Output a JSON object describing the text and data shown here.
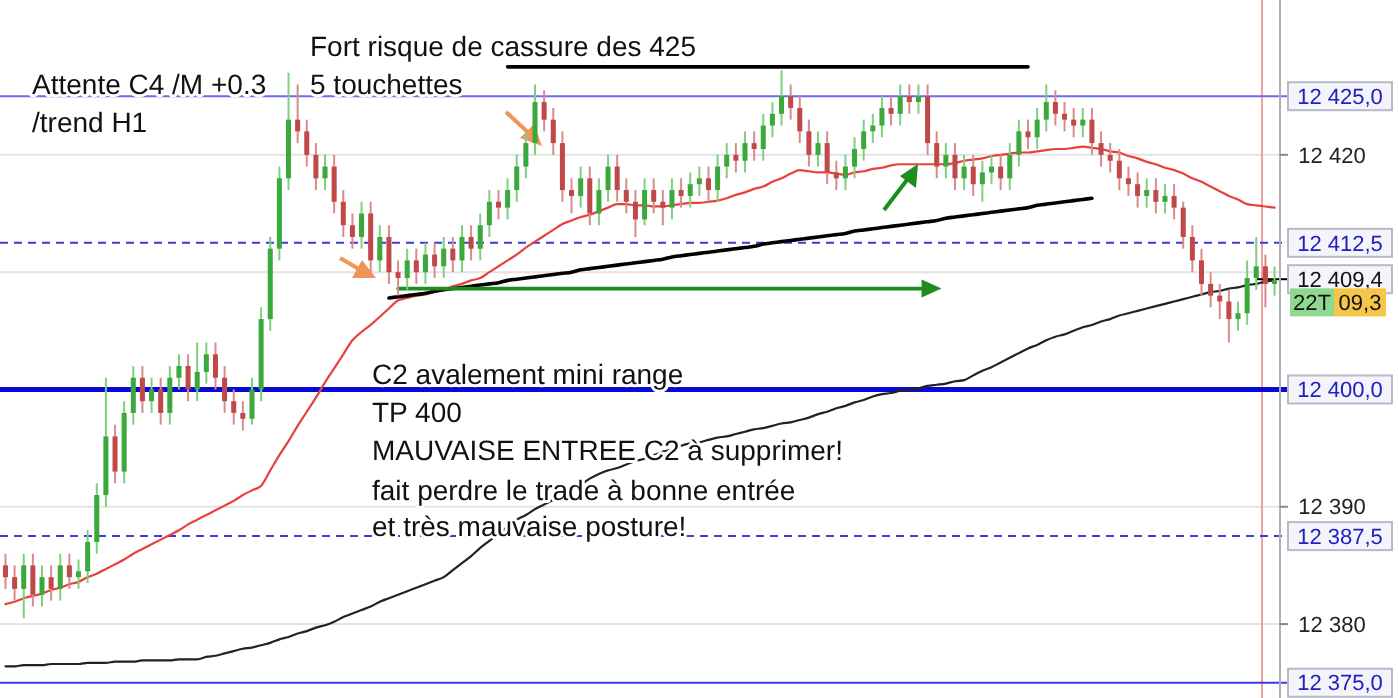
{
  "chart_data": {
    "type": "candlestick",
    "categories": [
      null,
      null,
      null,
      null,
      null,
      null,
      null,
      null,
      null,
      null,
      null,
      null,
      null,
      null,
      null,
      null,
      null,
      null,
      null,
      null,
      null,
      null,
      null,
      null,
      null,
      null,
      null,
      null,
      null,
      null,
      null,
      null,
      null,
      null,
      null,
      null,
      null,
      null,
      null,
      null,
      null,
      null,
      null,
      null,
      null,
      null,
      null,
      null,
      null,
      null,
      null,
      null,
      null,
      null,
      null,
      null,
      null,
      null,
      null,
      null,
      null,
      null,
      null,
      null,
      null,
      null,
      null,
      null,
      null,
      null,
      null,
      null,
      null,
      null,
      null,
      null,
      null,
      null,
      null,
      null,
      null,
      null,
      null,
      null,
      null,
      null,
      null,
      null,
      null,
      null,
      null,
      null,
      null,
      null,
      null,
      null,
      null,
      null,
      null,
      null,
      null,
      null,
      null,
      null,
      null,
      null,
      null,
      null,
      null,
      null,
      null,
      null,
      null,
      null,
      null,
      null,
      null,
      null,
      null,
      null,
      null,
      null,
      null,
      null,
      null,
      null,
      null,
      null,
      null,
      null,
      null,
      null,
      null,
      null,
      null,
      null,
      null,
      null,
      null,
      null
    ],
    "ohlc": [
      [
        12385,
        12386,
        12383,
        12384
      ],
      [
        12384,
        12385,
        12382,
        12383
      ],
      [
        12383,
        12386,
        12380.5,
        12385
      ],
      [
        12385,
        12386,
        12381.5,
        12382.5
      ],
      [
        12382.5,
        12385,
        12381.5,
        12384
      ],
      [
        12384,
        12385,
        12382,
        12383
      ],
      [
        12383,
        12386,
        12382,
        12385
      ],
      [
        12385,
        12386,
        12383,
        12384
      ],
      [
        12384,
        12385.5,
        12383,
        12384.5
      ],
      [
        12384.5,
        12388,
        12383.5,
        12387
      ],
      [
        12387,
        12392,
        12386,
        12391
      ],
      [
        12391,
        12401,
        12390,
        12396
      ],
      [
        12396,
        12397,
        12392,
        12393
      ],
      [
        12393,
        12399,
        12392,
        12398
      ],
      [
        12398,
        12402,
        12397,
        12401
      ],
      [
        12401,
        12402,
        12398,
        12399
      ],
      [
        12399,
        12401,
        12398,
        12400
      ],
      [
        12400,
        12401,
        12397,
        12398
      ],
      [
        12398,
        12402,
        12397,
        12401
      ],
      [
        12401,
        12403,
        12400,
        12402
      ],
      [
        12402,
        12403,
        12399,
        12400
      ],
      [
        12400,
        12404,
        12399,
        12401.5
      ],
      [
        12401.5,
        12404,
        12400.5,
        12403
      ],
      [
        12403,
        12404,
        12400,
        12401
      ],
      [
        12401,
        12402,
        12398,
        12399
      ],
      [
        12399,
        12400,
        12397,
        12398
      ],
      [
        12398,
        12399,
        12396.5,
        12397.5
      ],
      [
        12397.5,
        12401,
        12397,
        12400
      ],
      [
        12400,
        12407,
        12399,
        12406
      ],
      [
        12406,
        12413,
        12405,
        12412
      ],
      [
        12412,
        12419,
        12411,
        12418
      ],
      [
        12418,
        12427,
        12417,
        12423
      ],
      [
        12423,
        12426,
        12421,
        12422
      ],
      [
        12422,
        12423,
        12419,
        12420
      ],
      [
        12420,
        12421,
        12417,
        12418
      ],
      [
        12418,
        12420,
        12417,
        12419
      ],
      [
        12419,
        12420,
        12415,
        12416
      ],
      [
        12416,
        12417,
        12413,
        12414
      ],
      [
        12414,
        12415,
        12412,
        12413
      ],
      [
        12413,
        12416,
        12412,
        12415
      ],
      [
        12415,
        12416,
        12410,
        12411
      ],
      [
        12411,
        12414,
        12410,
        12413
      ],
      [
        12413,
        12414,
        12409,
        12410
      ],
      [
        12410,
        12411,
        12408,
        12409.5
      ],
      [
        12409.5,
        12412,
        12408.5,
        12411
      ],
      [
        12411,
        12412,
        12409,
        12410
      ],
      [
        12410,
        12412.5,
        12409,
        12411.5
      ],
      [
        12411.5,
        12412.5,
        12409.5,
        12410.5
      ],
      [
        12410.5,
        12413,
        12409.5,
        12412
      ],
      [
        12412,
        12413,
        12410,
        12411
      ],
      [
        12411,
        12414,
        12410,
        12413
      ],
      [
        12413,
        12414,
        12411,
        12412
      ],
      [
        12412,
        12415,
        12411,
        12414
      ],
      [
        12414,
        12417,
        12413,
        12416
      ],
      [
        12416,
        12417,
        12414.5,
        12415.5
      ],
      [
        12415.5,
        12418,
        12414.5,
        12417
      ],
      [
        12417,
        12420,
        12416,
        12419
      ],
      [
        12419,
        12422,
        12418,
        12421
      ],
      [
        12421,
        12426,
        12420,
        12424.5
      ],
      [
        12424.5,
        12425.5,
        12422,
        12423
      ],
      [
        12423,
        12424,
        12420,
        12421
      ],
      [
        12421,
        12422,
        12416,
        12417
      ],
      [
        12417,
        12418,
        12415,
        12416.5
      ],
      [
        12416.5,
        12419,
        12415.5,
        12418
      ],
      [
        12418,
        12419,
        12414,
        12415
      ],
      [
        12415,
        12418,
        12414,
        12417
      ],
      [
        12417,
        12420,
        12416,
        12419
      ],
      [
        12419,
        12420,
        12416,
        12417
      ],
      [
        12417,
        12418,
        12415,
        12416
      ],
      [
        12416,
        12417,
        12413,
        12414.5
      ],
      [
        12414.5,
        12418,
        12414,
        12417
      ],
      [
        12417,
        12418,
        12415,
        12416
      ],
      [
        12416,
        12417,
        12414,
        12415.5
      ],
      [
        12415.5,
        12418,
        12414.5,
        12417
      ],
      [
        12417,
        12418,
        12415.5,
        12416.5
      ],
      [
        12416.5,
        12418.5,
        12415.5,
        12417.5
      ],
      [
        12417.5,
        12419,
        12416.5,
        12418
      ],
      [
        12418,
        12419,
        12416,
        12417
      ],
      [
        12417,
        12420,
        12416,
        12419
      ],
      [
        12419,
        12421,
        12418,
        12420
      ],
      [
        12420,
        12421,
        12418.5,
        12419.5
      ],
      [
        12419.5,
        12422,
        12418.5,
        12421
      ],
      [
        12421,
        12422,
        12419.5,
        12420.5
      ],
      [
        12420.5,
        12423.5,
        12419.5,
        12422.5
      ],
      [
        12422.5,
        12424.5,
        12421.5,
        12423.5
      ],
      [
        12423.5,
        12427.2,
        12422.5,
        12425
      ],
      [
        12425,
        12426,
        12423,
        12424
      ],
      [
        12424,
        12425,
        12421,
        12422
      ],
      [
        12422,
        12423,
        12419,
        12420
      ],
      [
        12420,
        12422,
        12419,
        12421
      ],
      [
        12421,
        12422,
        12417.5,
        12418.5
      ],
      [
        12418.5,
        12419.5,
        12417,
        12418
      ],
      [
        12418,
        12420,
        12417,
        12419
      ],
      [
        12419,
        12421.5,
        12418,
        12420.5
      ],
      [
        12420.5,
        12423,
        12419.5,
        12422
      ],
      [
        12422,
        12423.5,
        12421,
        12422.5
      ],
      [
        12422.5,
        12425,
        12421.5,
        12424
      ],
      [
        12424,
        12425,
        12422.5,
        12423.5
      ],
      [
        12423.5,
        12426,
        12422.5,
        12425
      ],
      [
        12425,
        12426,
        12423.5,
        12424.5
      ],
      [
        12424.5,
        12426,
        12423.5,
        12425
      ],
      [
        12425,
        12426,
        12420,
        12421
      ],
      [
        12421,
        12422,
        12418,
        12419
      ],
      [
        12419,
        12421,
        12418,
        12420
      ],
      [
        12420,
        12421,
        12417,
        12418
      ],
      [
        12418,
        12420,
        12417,
        12419
      ],
      [
        12419,
        12420,
        12416.5,
        12417.5
      ],
      [
        12417.5,
        12419.5,
        12416,
        12418.5
      ],
      [
        12418.5,
        12420,
        12417.5,
        12419
      ],
      [
        12419,
        12420,
        12417,
        12418
      ],
      [
        12418,
        12421,
        12417,
        12420
      ],
      [
        12420,
        12423,
        12419,
        12422
      ],
      [
        12422,
        12423,
        12420.5,
        12421.5
      ],
      [
        12421.5,
        12424,
        12420.5,
        12423
      ],
      [
        12423,
        12426,
        12422,
        12424.5
      ],
      [
        12424.5,
        12425.5,
        12422.5,
        12423.5
      ],
      [
        12423.5,
        12424.5,
        12422,
        12423
      ],
      [
        12423,
        12424,
        12421.5,
        12422.5
      ],
      [
        12422.5,
        12424,
        12421.5,
        12423
      ],
      [
        12423,
        12424,
        12420,
        12421
      ],
      [
        12421,
        12422,
        12419,
        12420
      ],
      [
        12420,
        12421,
        12418.5,
        12419.5
      ],
      [
        12419.5,
        12420.5,
        12417,
        12418
      ],
      [
        12418,
        12419,
        12416.5,
        12417.5
      ],
      [
        12417.5,
        12418.5,
        12415.5,
        12416.5
      ],
      [
        12416.5,
        12418,
        12415.5,
        12417
      ],
      [
        12417,
        12418,
        12415,
        12416
      ],
      [
        12416,
        12417.5,
        12415,
        12416.5
      ],
      [
        12416.5,
        12417.5,
        12414.5,
        12415.5
      ],
      [
        12415.5,
        12416,
        12412,
        12413
      ],
      [
        12413,
        12414,
        12410,
        12411
      ],
      [
        12411,
        12412,
        12408,
        12409
      ],
      [
        12409,
        12410,
        12407,
        12408
      ],
      [
        12408,
        12409,
        12406,
        12407.5
      ],
      [
        12407.5,
        12408.5,
        12404,
        12406
      ],
      [
        12406,
        12407.5,
        12405,
        12406.5
      ],
      [
        12406.5,
        12411,
        12405.5,
        12409.5
      ],
      [
        12409.5,
        12413,
        12408.5,
        12410.5
      ],
      [
        12410.5,
        12411.5,
        12407,
        12409
      ],
      [
        12409,
        12410.5,
        12408,
        12409.3
      ]
    ],
    "series": [
      {
        "type": "line",
        "color": "#e8413c",
        "values": [
          12381.7,
          12381.9,
          12382.2,
          12382.4,
          12382.6,
          12382.9,
          12383.1,
          12383.4,
          12383.6,
          12384.0,
          12384.3,
          12384.7,
          12385.1,
          12385.5,
          12386.0,
          12386.4,
          12386.8,
          12387.2,
          12387.6,
          12388.0,
          12388.5,
          12388.9,
          12389.3,
          12389.7,
          12390.1,
          12390.5,
          12391.0,
          12391.4,
          12391.8,
          12393.1,
          12394.4,
          12395.6,
          12396.9,
          12398.1,
          12399.3,
          12400.6,
          12401.8,
          12403.0,
          12404.2,
          12404.9,
          12405.5,
          12406.2,
          12406.9,
          12407.6,
          12407.8,
          12408.0,
          12408.1,
          12408.3,
          12408.5,
          12408.8,
          12409.0,
          12409.3,
          12409.5,
          12410.0,
          12410.5,
          12411.0,
          12411.5,
          12412.1,
          12412.6,
          12413.1,
          12413.6,
          12414.1,
          12414.4,
          12414.7,
          12414.9,
          12415.2,
          12415.5,
          12415.8,
          12415.8,
          12415.7,
          12415.7,
          12415.6,
          12415.6,
          12415.7,
          12415.8,
          12415.9,
          12415.9,
          12416.0,
          12416.1,
          12416.3,
          12416.6,
          12416.8,
          12417.1,
          12417.3,
          12417.7,
          12418.0,
          12418.4,
          12418.7,
          12418.6,
          12418.5,
          12418.5,
          12418.4,
          12418.3,
          12418.5,
          12418.6,
          12418.8,
          12418.9,
          12419.1,
          12419.2,
          12419.2,
          12419.2,
          12419.2,
          12419.2,
          12419.2,
          12419.3,
          12419.5,
          12419.6,
          12419.7,
          12419.9,
          12420.0,
          12420.1,
          12420.2,
          12420.2,
          12420.3,
          12420.4,
          12420.5,
          12420.5,
          12420.6,
          12420.7,
          12420.6,
          12420.5,
          12420.3,
          12420.2,
          12419.9,
          12419.7,
          12419.4,
          12419.2,
          12418.9,
          12418.7,
          12418.4,
          12418.0,
          12417.7,
          12417.3,
          12416.9,
          12416.5,
          12416.2,
          12415.8,
          12415.7,
          12415.6,
          12415.5
        ]
      },
      {
        "type": "line",
        "color": "#222222",
        "values": [
          12376.4,
          12376.4,
          12376.5,
          12376.5,
          12376.5,
          12376.6,
          12376.6,
          12376.6,
          12376.6,
          12376.7,
          12376.7,
          12376.7,
          12376.8,
          12376.8,
          12376.8,
          12376.9,
          12376.9,
          12376.9,
          12376.9,
          12377.0,
          12377.0,
          12377.0,
          12377.2,
          12377.3,
          12377.5,
          12377.7,
          12377.9,
          12378.0,
          12378.2,
          12378.4,
          12378.7,
          12378.9,
          12379.2,
          12379.4,
          12379.7,
          12379.9,
          12380.2,
          12380.6,
          12380.9,
          12381.2,
          12381.5,
          12381.9,
          12382.2,
          12382.5,
          12382.8,
          12383.1,
          12383.4,
          12383.7,
          12384.0,
          12384.6,
          12385.2,
          12385.8,
          12386.5,
          12387.1,
          12387.7,
          12388.3,
          12388.9,
          12389.3,
          12389.8,
          12390.2,
          12390.6,
          12391.1,
          12391.5,
          12391.9,
          12392.4,
          12392.8,
          12393.1,
          12393.3,
          12393.6,
          12393.9,
          12394.1,
          12394.4,
          12394.7,
          12394.9,
          12395.2,
          12395.4,
          12395.5,
          12395.7,
          12395.9,
          12396.0,
          12396.2,
          12396.4,
          12396.6,
          12396.7,
          12396.9,
          12397.1,
          12397.2,
          12397.4,
          12397.6,
          12397.9,
          12398.1,
          12398.4,
          12398.6,
          12398.9,
          12399.1,
          12399.4,
          12399.6,
          12399.7,
          12399.9,
          12400.0,
          12400.1,
          12400.3,
          12400.4,
          12400.5,
          12400.7,
          12400.8,
          12401.2,
          12401.6,
          12401.9,
          12402.3,
          12402.7,
          12403.1,
          12403.5,
          12403.8,
          12404.2,
          12404.5,
          12404.7,
          12405.0,
          12405.3,
          12405.5,
          12405.8,
          12406.0,
          12406.3,
          12406.5,
          12406.7,
          12406.9,
          12407.1,
          12407.3,
          12407.5,
          12407.7,
          12407.9,
          12408.1,
          12408.3,
          12408.4,
          12408.6,
          12408.7,
          12408.9,
          12409.0,
          12409.2,
          12409.3
        ]
      },
      {
        "type": "line",
        "color": "#000000",
        "values": [
          null,
          null,
          null,
          null,
          null,
          null,
          null,
          null,
          null,
          null,
          null,
          null,
          null,
          null,
          null,
          null,
          null,
          null,
          null,
          null,
          null,
          null,
          null,
          null,
          null,
          null,
          null,
          null,
          null,
          null,
          null,
          null,
          null,
          null,
          null,
          null,
          null,
          null,
          null,
          null,
          null,
          null,
          null,
          null,
          null,
          null,
          null,
          null,
          null,
          null,
          null,
          null,
          null,
          null,
          null,
          12427.5,
          12427.5,
          12427.5,
          12427.5,
          12427.5,
          12427.5,
          12427.5,
          12427.5,
          12427.5,
          12427.5,
          12427.5,
          12427.5,
          12427.5,
          12427.5,
          12427.5,
          12427.5,
          12427.5,
          12427.5,
          12427.5,
          12427.5,
          12427.5,
          12427.5,
          12427.5,
          12427.5,
          12427.5,
          12427.5,
          12427.5,
          12427.5,
          12427.5,
          12427.5,
          12427.5,
          12427.5,
          12427.5,
          12427.5,
          12427.5,
          12427.5,
          12427.5,
          12427.5,
          12427.5,
          12427.5,
          12427.5,
          12427.5,
          12427.5,
          12427.5,
          12427.5,
          12427.5,
          12427.5,
          12427.5,
          12427.5,
          12427.5,
          12427.5,
          12427.5,
          12427.5,
          12427.5,
          12427.5,
          12427.5,
          12427.5,
          12427.5,
          null,
          null,
          null,
          null,
          null,
          null,
          null,
          null,
          null,
          null,
          null,
          null,
          null,
          null,
          null,
          null,
          null,
          null,
          null,
          null,
          null,
          null,
          null,
          null,
          null,
          null,
          null
        ]
      },
      {
        "type": "line",
        "color": "#000000",
        "values": [
          null,
          null,
          null,
          null,
          null,
          null,
          null,
          null,
          null,
          null,
          null,
          null,
          null,
          null,
          null,
          null,
          null,
          null,
          null,
          null,
          null,
          null,
          null,
          null,
          null,
          null,
          null,
          null,
          null,
          null,
          null,
          null,
          null,
          null,
          null,
          null,
          null,
          null,
          null,
          null,
          null,
          null,
          12407.8,
          12407.9,
          12408.0,
          12408.1,
          12408.2,
          12408.4,
          12408.5,
          12408.6,
          12408.7,
          12408.8,
          12408.9,
          12409.0,
          12409.1,
          12409.3,
          12409.4,
          12409.5,
          12409.6,
          12409.7,
          12409.8,
          12409.9,
          12410.0,
          12410.2,
          12410.3,
          12410.4,
          12410.5,
          12410.6,
          12410.7,
          12410.8,
          12410.9,
          12411.0,
          12411.1,
          12411.3,
          12411.4,
          12411.5,
          12411.6,
          12411.7,
          12411.8,
          12411.9,
          12412.0,
          12412.1,
          12412.2,
          12412.4,
          12412.5,
          12412.6,
          12412.7,
          12412.8,
          12412.9,
          12413.0,
          12413.1,
          12413.2,
          12413.3,
          12413.5,
          12413.6,
          12413.7,
          12413.8,
          12413.9,
          12414.0,
          12414.1,
          12414.2,
          12414.3,
          12414.4,
          12414.6,
          12414.7,
          12414.8,
          12414.9,
          12415.0,
          12415.1,
          12415.2,
          12415.3,
          12415.4,
          12415.5,
          12415.7,
          12415.8,
          12415.9,
          12416.0,
          12416.1,
          12416.2,
          12416.3,
          null,
          null,
          null,
          null,
          null,
          null,
          null,
          null,
          null,
          null,
          null,
          null,
          null,
          null,
          null,
          null,
          null,
          null,
          null,
          null
        ]
      },
      {
        "type": "line",
        "color": "#1e8c1e",
        "values": [
          null,
          null,
          null,
          null,
          null,
          null,
          null,
          null,
          null,
          null,
          null,
          null,
          null,
          null,
          null,
          null,
          null,
          null,
          null,
          null,
          null,
          null,
          null,
          null,
          null,
          null,
          null,
          null,
          null,
          null,
          null,
          null,
          null,
          null,
          null,
          null,
          null,
          null,
          null,
          null,
          null,
          null,
          null,
          12408.6,
          12408.6,
          12408.6,
          12408.6,
          12408.6,
          12408.6,
          12408.6,
          12408.6,
          12408.6,
          12408.6,
          12408.6,
          12408.6,
          12408.6,
          12408.6,
          12408.6,
          12408.6,
          12408.6,
          12408.6,
          12408.6,
          12408.6,
          12408.6,
          12408.6,
          12408.6,
          12408.6,
          12408.6,
          12408.6,
          12408.6,
          12408.6,
          12408.6,
          12408.6,
          12408.6,
          12408.6,
          12408.6,
          12408.6,
          12408.6,
          12408.6,
          12408.6,
          12408.6,
          12408.6,
          12408.6,
          12408.6,
          12408.6,
          12408.6,
          12408.6,
          12408.6,
          12408.6,
          12408.6,
          12408.6,
          12408.6,
          12408.6,
          12408.6,
          12408.6,
          12408.6,
          12408.6,
          12408.6,
          12408.6,
          12408.6,
          12408.6,
          12408.6,
          null,
          null,
          null,
          null,
          null,
          null,
          null,
          null,
          null,
          null,
          null,
          null,
          null,
          null,
          null,
          null,
          null,
          null,
          null,
          null,
          null,
          null,
          null,
          null,
          null,
          null,
          null,
          null,
          null,
          null,
          null,
          null,
          null,
          null,
          null,
          null,
          null,
          null
        ]
      }
    ],
    "ref_lines": [
      {
        "axis": "y",
        "value": 12425,
        "label": "12 425,0",
        "color": "#6b6bf0",
        "line_style": "solid"
      },
      {
        "axis": "y",
        "value": 12412.5,
        "label": "12 412,5",
        "color": "#3a3ae0",
        "line_style": "dashed"
      },
      {
        "axis": "y",
        "value": 12409.4,
        "label": "12 409,4",
        "color": "#000000",
        "line_style": "solid"
      },
      {
        "axis": "y",
        "value": 12400,
        "label": "12 400,0",
        "color": "#0a0ad8",
        "line_style": "solid"
      },
      {
        "axis": "y",
        "value": 12387.5,
        "label": "12 387,5",
        "color": "#3a3ae0",
        "line_style": "dashed"
      },
      {
        "axis": "y",
        "value": 12375,
        "label": "12 375,0",
        "color": "#3a3ae0",
        "line_style": "solid"
      }
    ],
    "ylim": [
      12373.7,
      12433.2
    ],
    "yticks": [
      {
        "value": 12380,
        "label": "12 380"
      },
      {
        "value": 12390,
        "label": "12 390"
      },
      {
        "value": 12410,
        "label": null
      },
      {
        "value": 12420,
        "label": "12 420"
      }
    ],
    "grid": "y",
    "tick_labels": "y",
    "annotations": [
      "Fort risque de cassure  des 425",
      "5 touchettes",
      "Attente C4 /M +0.3",
      "/trend H1",
      "C2 avalement mini range",
      "TP 400",
      "MAUVAISE ENTREE C2 à supprimer!",
      "fait perdre le trade à bonne entrée",
      "et très mauvaise posture!",
      "22T",
      "09,3"
    ]
  }
}
